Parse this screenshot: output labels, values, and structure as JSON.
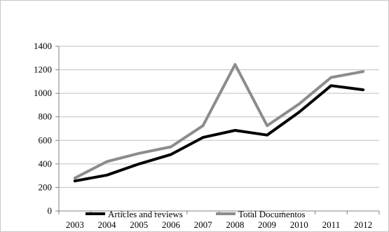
{
  "chart_data": {
    "type": "line",
    "title": "",
    "xlabel": "",
    "ylabel": "",
    "categories": [
      "2003",
      "2004",
      "2005",
      "2006",
      "2007",
      "2008",
      "2009",
      "2010",
      "2011",
      "2012"
    ],
    "y_ticks": [
      "0",
      "200",
      "400",
      "600",
      "800",
      "1000",
      "1200",
      "1400"
    ],
    "ylim": [
      0,
      1400
    ],
    "grid": "horizontal",
    "legend": "bottom",
    "series": [
      {
        "name": "Articles and reviews",
        "color": "#000000",
        "values": [
          255,
          305,
          400,
          480,
          625,
          685,
          645,
          840,
          1065,
          1030
        ]
      },
      {
        "name": "Total Documentos",
        "color": "#8c8c8c",
        "values": [
          280,
          420,
          490,
          545,
          725,
          1245,
          725,
          910,
          1135,
          1185
        ]
      }
    ]
  }
}
